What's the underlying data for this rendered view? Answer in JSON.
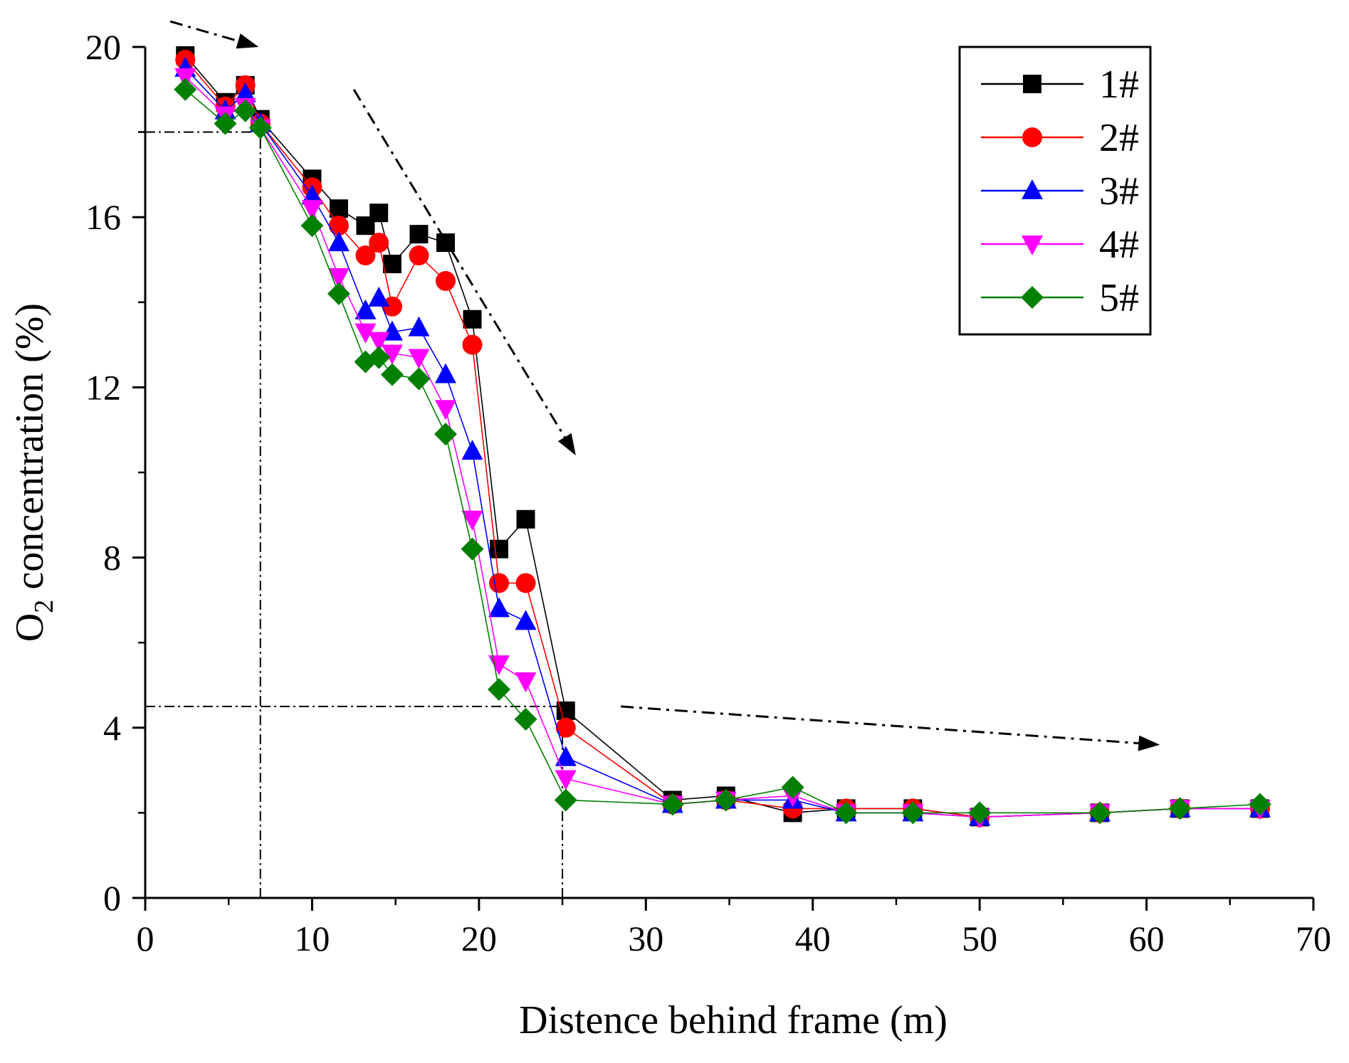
{
  "chart_data": {
    "type": "line",
    "xlabel": "Distence behind frame (m)",
    "ylabel_main": "O",
    "ylabel_sub": "2",
    "ylabel_rest": " concentration (%)",
    "xlim": [
      0,
      70
    ],
    "ylim": [
      0,
      20
    ],
    "xticks": [
      0,
      10,
      20,
      30,
      40,
      50,
      60,
      70
    ],
    "yticks": [
      0,
      4,
      8,
      12,
      16,
      20
    ],
    "grid": false,
    "legend_position": "top-right",
    "x": [
      2.4,
      4.8,
      6.0,
      6.9,
      10.0,
      11.6,
      13.2,
      14.0,
      14.8,
      16.4,
      18.0,
      19.6,
      21.2,
      22.8,
      25.2,
      31.6,
      34.8,
      38.8,
      42.0,
      46.0,
      50.0,
      57.2,
      62.0,
      66.8
    ],
    "series": [
      {
        "name": "1#",
        "color": "#000000",
        "marker": "square",
        "values": [
          19.8,
          18.7,
          19.1,
          18.3,
          16.9,
          16.2,
          15.8,
          16.1,
          14.9,
          15.6,
          15.4,
          13.6,
          8.2,
          8.9,
          4.4,
          2.3,
          2.4,
          2.0,
          2.1,
          2.1,
          1.9,
          2.0,
          2.1,
          2.1
        ]
      },
      {
        "name": "2#",
        "color": "#ff0000",
        "marker": "circle",
        "values": [
          19.7,
          18.6,
          19.1,
          18.2,
          16.7,
          15.8,
          15.1,
          15.4,
          13.9,
          15.1,
          14.5,
          13.0,
          7.4,
          7.4,
          4.0,
          2.2,
          2.3,
          2.1,
          2.1,
          2.1,
          1.9,
          2.0,
          2.1,
          2.1
        ]
      },
      {
        "name": "3#",
        "color": "#0000ff",
        "marker": "triangle-up",
        "values": [
          19.5,
          18.5,
          18.9,
          18.2,
          16.5,
          15.4,
          13.8,
          14.1,
          13.3,
          13.4,
          12.3,
          10.5,
          6.8,
          6.5,
          3.3,
          2.2,
          2.3,
          2.3,
          2.0,
          2.0,
          1.9,
          2.0,
          2.1,
          2.1
        ]
      },
      {
        "name": "4#",
        "color": "#ff00ff",
        "marker": "triangle-down",
        "values": [
          19.3,
          18.4,
          18.6,
          18.1,
          16.2,
          14.6,
          13.3,
          13.1,
          12.8,
          12.7,
          11.5,
          8.9,
          5.5,
          5.1,
          2.8,
          2.2,
          2.3,
          2.4,
          2.0,
          2.0,
          1.9,
          2.0,
          2.1,
          2.1
        ]
      },
      {
        "name": "5#",
        "color": "#007f00",
        "marker": "diamond",
        "values": [
          19.0,
          18.2,
          18.5,
          18.1,
          15.8,
          14.2,
          12.6,
          12.7,
          12.3,
          12.2,
          10.9,
          8.2,
          4.9,
          4.2,
          2.3,
          2.2,
          2.3,
          2.6,
          2.0,
          2.0,
          2.0,
          2.0,
          2.1,
          2.2
        ]
      }
    ],
    "reference_lines": [
      {
        "orientation": "horizontal",
        "y": 18.0,
        "x_to": 6.9
      },
      {
        "orientation": "vertical",
        "x": 6.9,
        "y_from": 0,
        "y_to": 18.0
      },
      {
        "orientation": "horizontal",
        "y": 4.5,
        "x_to": 25.0
      },
      {
        "orientation": "vertical",
        "x": 25.0,
        "y_from": 0,
        "y_to": 4.5
      }
    ],
    "trend_arrows": [
      {
        "from": [
          1.5,
          20.6
        ],
        "to": [
          6.8,
          20.0
        ]
      },
      {
        "from": [
          12.5,
          19.0
        ],
        "to": [
          25.8,
          10.4
        ]
      },
      {
        "from": [
          28.5,
          4.5
        ],
        "to": [
          60.8,
          3.6
        ]
      }
    ]
  }
}
